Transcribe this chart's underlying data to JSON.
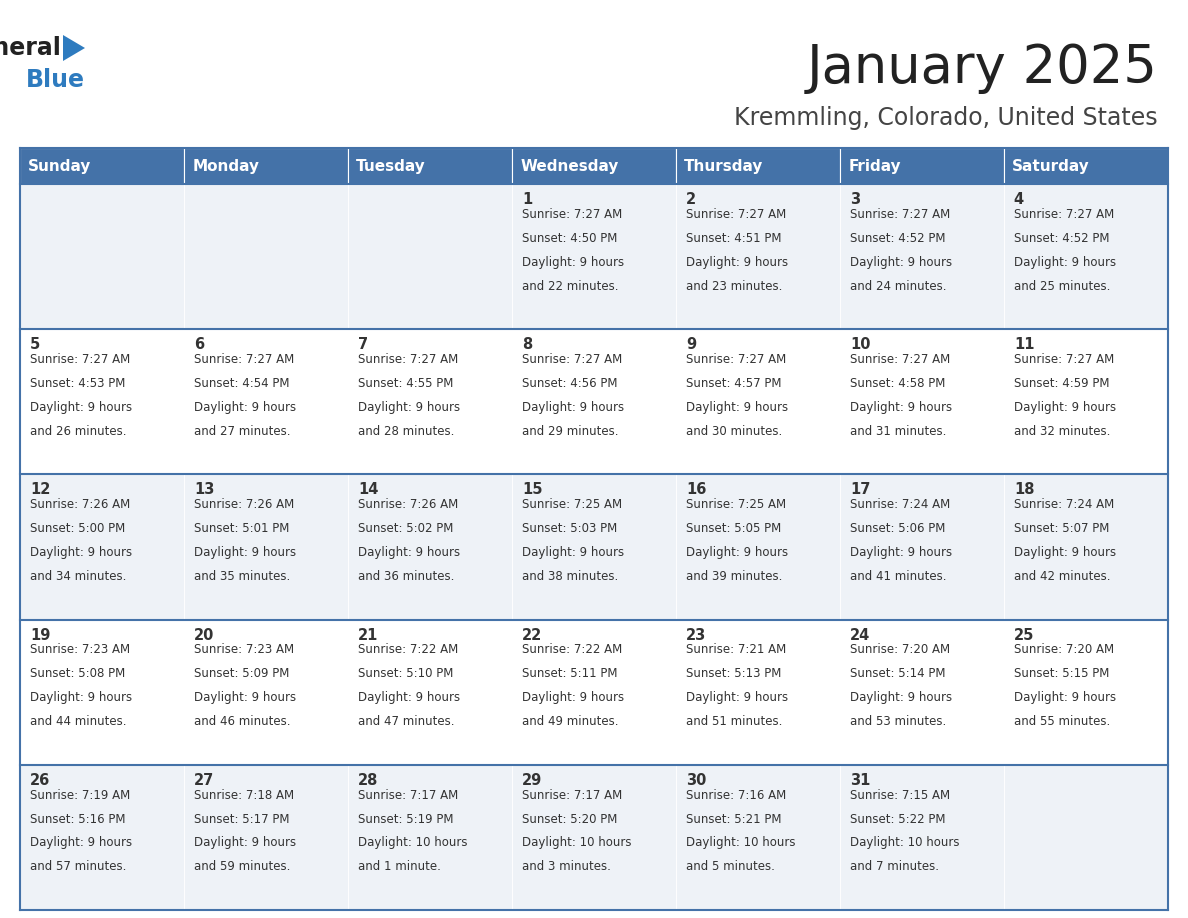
{
  "title": "January 2025",
  "subtitle": "Kremmling, Colorado, United States",
  "days_of_week": [
    "Sunday",
    "Monday",
    "Tuesday",
    "Wednesday",
    "Thursday",
    "Friday",
    "Saturday"
  ],
  "header_bg": "#4472a8",
  "header_text": "#ffffff",
  "row_bg_light": "#eef2f7",
  "row_bg_white": "#ffffff",
  "cell_text": "#333333",
  "border_color": "#4472a8",
  "title_color": "#222222",
  "subtitle_color": "#444444",
  "logo_general_color": "#222222",
  "logo_blue_color": "#2e7bbf",
  "calendar_data": [
    {
      "day": 1,
      "col": 3,
      "row": 0,
      "sunrise": "7:27 AM",
      "sunset": "4:50 PM",
      "daylight_line1": "Daylight: 9 hours",
      "daylight_line2": "and 22 minutes."
    },
    {
      "day": 2,
      "col": 4,
      "row": 0,
      "sunrise": "7:27 AM",
      "sunset": "4:51 PM",
      "daylight_line1": "Daylight: 9 hours",
      "daylight_line2": "and 23 minutes."
    },
    {
      "day": 3,
      "col": 5,
      "row": 0,
      "sunrise": "7:27 AM",
      "sunset": "4:52 PM",
      "daylight_line1": "Daylight: 9 hours",
      "daylight_line2": "and 24 minutes."
    },
    {
      "day": 4,
      "col": 6,
      "row": 0,
      "sunrise": "7:27 AM",
      "sunset": "4:52 PM",
      "daylight_line1": "Daylight: 9 hours",
      "daylight_line2": "and 25 minutes."
    },
    {
      "day": 5,
      "col": 0,
      "row": 1,
      "sunrise": "7:27 AM",
      "sunset": "4:53 PM",
      "daylight_line1": "Daylight: 9 hours",
      "daylight_line2": "and 26 minutes."
    },
    {
      "day": 6,
      "col": 1,
      "row": 1,
      "sunrise": "7:27 AM",
      "sunset": "4:54 PM",
      "daylight_line1": "Daylight: 9 hours",
      "daylight_line2": "and 27 minutes."
    },
    {
      "day": 7,
      "col": 2,
      "row": 1,
      "sunrise": "7:27 AM",
      "sunset": "4:55 PM",
      "daylight_line1": "Daylight: 9 hours",
      "daylight_line2": "and 28 minutes."
    },
    {
      "day": 8,
      "col": 3,
      "row": 1,
      "sunrise": "7:27 AM",
      "sunset": "4:56 PM",
      "daylight_line1": "Daylight: 9 hours",
      "daylight_line2": "and 29 minutes."
    },
    {
      "day": 9,
      "col": 4,
      "row": 1,
      "sunrise": "7:27 AM",
      "sunset": "4:57 PM",
      "daylight_line1": "Daylight: 9 hours",
      "daylight_line2": "and 30 minutes."
    },
    {
      "day": 10,
      "col": 5,
      "row": 1,
      "sunrise": "7:27 AM",
      "sunset": "4:58 PM",
      "daylight_line1": "Daylight: 9 hours",
      "daylight_line2": "and 31 minutes."
    },
    {
      "day": 11,
      "col": 6,
      "row": 1,
      "sunrise": "7:27 AM",
      "sunset": "4:59 PM",
      "daylight_line1": "Daylight: 9 hours",
      "daylight_line2": "and 32 minutes."
    },
    {
      "day": 12,
      "col": 0,
      "row": 2,
      "sunrise": "7:26 AM",
      "sunset": "5:00 PM",
      "daylight_line1": "Daylight: 9 hours",
      "daylight_line2": "and 34 minutes."
    },
    {
      "day": 13,
      "col": 1,
      "row": 2,
      "sunrise": "7:26 AM",
      "sunset": "5:01 PM",
      "daylight_line1": "Daylight: 9 hours",
      "daylight_line2": "and 35 minutes."
    },
    {
      "day": 14,
      "col": 2,
      "row": 2,
      "sunrise": "7:26 AM",
      "sunset": "5:02 PM",
      "daylight_line1": "Daylight: 9 hours",
      "daylight_line2": "and 36 minutes."
    },
    {
      "day": 15,
      "col": 3,
      "row": 2,
      "sunrise": "7:25 AM",
      "sunset": "5:03 PM",
      "daylight_line1": "Daylight: 9 hours",
      "daylight_line2": "and 38 minutes."
    },
    {
      "day": 16,
      "col": 4,
      "row": 2,
      "sunrise": "7:25 AM",
      "sunset": "5:05 PM",
      "daylight_line1": "Daylight: 9 hours",
      "daylight_line2": "and 39 minutes."
    },
    {
      "day": 17,
      "col": 5,
      "row": 2,
      "sunrise": "7:24 AM",
      "sunset": "5:06 PM",
      "daylight_line1": "Daylight: 9 hours",
      "daylight_line2": "and 41 minutes."
    },
    {
      "day": 18,
      "col": 6,
      "row": 2,
      "sunrise": "7:24 AM",
      "sunset": "5:07 PM",
      "daylight_line1": "Daylight: 9 hours",
      "daylight_line2": "and 42 minutes."
    },
    {
      "day": 19,
      "col": 0,
      "row": 3,
      "sunrise": "7:23 AM",
      "sunset": "5:08 PM",
      "daylight_line1": "Daylight: 9 hours",
      "daylight_line2": "and 44 minutes."
    },
    {
      "day": 20,
      "col": 1,
      "row": 3,
      "sunrise": "7:23 AM",
      "sunset": "5:09 PM",
      "daylight_line1": "Daylight: 9 hours",
      "daylight_line2": "and 46 minutes."
    },
    {
      "day": 21,
      "col": 2,
      "row": 3,
      "sunrise": "7:22 AM",
      "sunset": "5:10 PM",
      "daylight_line1": "Daylight: 9 hours",
      "daylight_line2": "and 47 minutes."
    },
    {
      "day": 22,
      "col": 3,
      "row": 3,
      "sunrise": "7:22 AM",
      "sunset": "5:11 PM",
      "daylight_line1": "Daylight: 9 hours",
      "daylight_line2": "and 49 minutes."
    },
    {
      "day": 23,
      "col": 4,
      "row": 3,
      "sunrise": "7:21 AM",
      "sunset": "5:13 PM",
      "daylight_line1": "Daylight: 9 hours",
      "daylight_line2": "and 51 minutes."
    },
    {
      "day": 24,
      "col": 5,
      "row": 3,
      "sunrise": "7:20 AM",
      "sunset": "5:14 PM",
      "daylight_line1": "Daylight: 9 hours",
      "daylight_line2": "and 53 minutes."
    },
    {
      "day": 25,
      "col": 6,
      "row": 3,
      "sunrise": "7:20 AM",
      "sunset": "5:15 PM",
      "daylight_line1": "Daylight: 9 hours",
      "daylight_line2": "and 55 minutes."
    },
    {
      "day": 26,
      "col": 0,
      "row": 4,
      "sunrise": "7:19 AM",
      "sunset": "5:16 PM",
      "daylight_line1": "Daylight: 9 hours",
      "daylight_line2": "and 57 minutes."
    },
    {
      "day": 27,
      "col": 1,
      "row": 4,
      "sunrise": "7:18 AM",
      "sunset": "5:17 PM",
      "daylight_line1": "Daylight: 9 hours",
      "daylight_line2": "and 59 minutes."
    },
    {
      "day": 28,
      "col": 2,
      "row": 4,
      "sunrise": "7:17 AM",
      "sunset": "5:19 PM",
      "daylight_line1": "Daylight: 10 hours",
      "daylight_line2": "and 1 minute."
    },
    {
      "day": 29,
      "col": 3,
      "row": 4,
      "sunrise": "7:17 AM",
      "sunset": "5:20 PM",
      "daylight_line1": "Daylight: 10 hours",
      "daylight_line2": "and 3 minutes."
    },
    {
      "day": 30,
      "col": 4,
      "row": 4,
      "sunrise": "7:16 AM",
      "sunset": "5:21 PM",
      "daylight_line1": "Daylight: 10 hours",
      "daylight_line2": "and 5 minutes."
    },
    {
      "day": 31,
      "col": 5,
      "row": 4,
      "sunrise": "7:15 AM",
      "sunset": "5:22 PM",
      "daylight_line1": "Daylight: 10 hours",
      "daylight_line2": "and 7 minutes."
    }
  ]
}
